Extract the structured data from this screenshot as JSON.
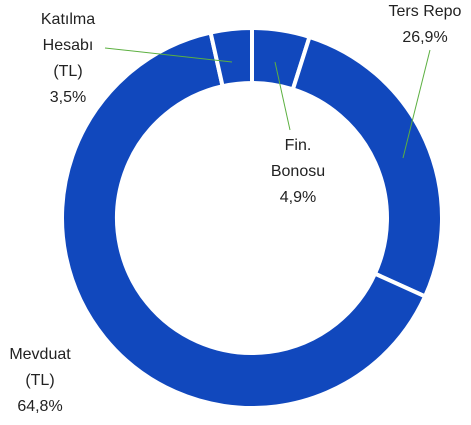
{
  "chart_data": {
    "type": "donut",
    "categories": [
      [
        "Fin.",
        "Bonosu"
      ],
      [
        "Ters Repo"
      ],
      [
        "Mevduat",
        "(TL)"
      ],
      [
        "Katılma",
        "Hesabı",
        "(TL)"
      ]
    ],
    "values": [
      4.9,
      26.9,
      64.8,
      3.5
    ],
    "value_labels": [
      "4,9%",
      "26,9%",
      "64,8%",
      "3,5%"
    ],
    "color": "#1148bd"
  }
}
